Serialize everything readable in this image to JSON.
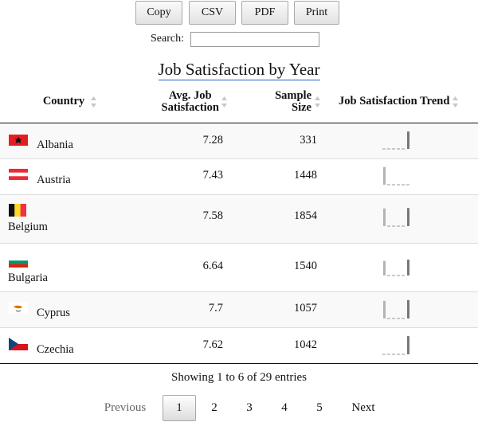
{
  "toolbar": {
    "buttons": [
      "Copy",
      "CSV",
      "PDF",
      "Print"
    ]
  },
  "search": {
    "label": "Search:",
    "value": ""
  },
  "table": {
    "caption": "Job Satisfaction by Year",
    "headers": {
      "country": "Country",
      "avg_line1": "Avg. Job",
      "avg_line2": "Satisfaction",
      "size_line1": "Sample",
      "size_line2": "Size",
      "trend": "Job Satisfaction Trend"
    },
    "rows": [
      {
        "country": "Albania",
        "flag": "albania-flag",
        "avg": "7.28",
        "sample": "331",
        "trend": [
          0,
          0,
          0,
          0,
          0,
          7.28
        ]
      },
      {
        "country": "Austria",
        "flag": "austria-flag",
        "avg": "7.43",
        "sample": "1448",
        "trend": [
          7.43,
          0,
          0,
          0,
          0,
          0
        ]
      },
      {
        "country": "Belgium",
        "flag": "belgium-flag",
        "avg": "7.58",
        "sample": "1854",
        "trend": [
          7.4,
          0,
          0,
          0,
          0,
          7.58
        ]
      },
      {
        "country": "Bulgaria",
        "flag": "bulgaria-flag",
        "avg": "6.64",
        "sample": "1540",
        "trend": [
          6.1,
          0,
          0,
          0,
          0,
          6.64
        ]
      },
      {
        "country": "Cyprus",
        "flag": "cyprus-flag",
        "avg": "7.7",
        "sample": "1057",
        "trend": [
          7.4,
          0,
          0,
          0,
          0,
          7.7
        ]
      },
      {
        "country": "Czechia",
        "flag": "czechia-flag",
        "avg": "7.62",
        "sample": "1042",
        "trend": [
          0,
          0,
          0,
          0,
          0,
          7.62
        ]
      }
    ]
  },
  "colors": {
    "spark_latest": "#777777",
    "spark_earlier": "#b4b4b4",
    "caption_underline": "#2563c7"
  },
  "info": "Showing 1 to 6 of 29 entries",
  "pagination": {
    "previous": "Previous",
    "pages": [
      "1",
      "2",
      "3",
      "4",
      "5"
    ],
    "current": "1",
    "next": "Next"
  }
}
